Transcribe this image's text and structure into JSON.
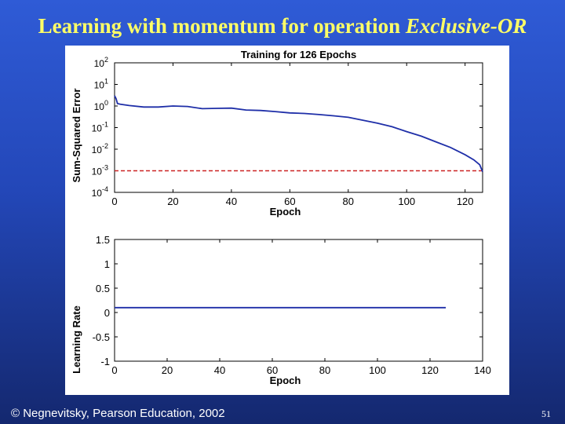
{
  "slide": {
    "title_main": "Learning with momentum for operation",
    "title_italic": "Exclusive-OR",
    "footer": "© Negnevitsky, Pearson Education, 2002",
    "page_number": "51"
  },
  "colors": {
    "series": "#1f2fa8",
    "goal": "#cc2222",
    "title": "#ffff66"
  },
  "chart_data": [
    {
      "type": "line",
      "title": "Training for 126 Epochs",
      "xlabel": "Epoch",
      "ylabel": "Sum-Squared Error",
      "yscale": "log",
      "xlim": [
        0,
        126
      ],
      "ylim": [
        0.0001,
        100
      ],
      "xticks": [
        0,
        20,
        40,
        60,
        80,
        100,
        120
      ],
      "yticks": [
        {
          "base": "10",
          "exp": "2"
        },
        {
          "base": "10",
          "exp": "1"
        },
        {
          "base": "10",
          "exp": "0"
        },
        {
          "base": "10",
          "exp": "-1"
        },
        {
          "base": "10",
          "exp": "-2"
        },
        {
          "base": "10",
          "exp": "-3"
        },
        {
          "base": "10",
          "exp": "-4"
        }
      ],
      "goal": 0.001,
      "series": [
        {
          "x": [
            0,
            0.5,
            1,
            2,
            5,
            10,
            15,
            20,
            25,
            30,
            35,
            40,
            45,
            50,
            55,
            60,
            65,
            70,
            75,
            80,
            85,
            90,
            95,
            100,
            105,
            110,
            115,
            120,
            123,
            125,
            126
          ],
          "y": [
            3.0,
            2.2,
            1.3,
            1.2,
            1.05,
            0.9,
            0.9,
            1.0,
            0.95,
            0.75,
            0.78,
            0.8,
            0.65,
            0.62,
            0.55,
            0.48,
            0.45,
            0.4,
            0.35,
            0.3,
            0.22,
            0.16,
            0.11,
            0.065,
            0.04,
            0.022,
            0.012,
            0.0055,
            0.0032,
            0.0019,
            0.0009
          ]
        }
      ]
    },
    {
      "type": "line",
      "title": "",
      "xlabel": "Epoch",
      "ylabel": "Learning Rate",
      "xlim": [
        0,
        140
      ],
      "ylim": [
        -1,
        1.5
      ],
      "xticks": [
        0,
        20,
        40,
        60,
        80,
        100,
        120,
        140
      ],
      "yticks": [
        1.5,
        1,
        0.5,
        0,
        -0.5,
        -1
      ],
      "series": [
        {
          "x": [
            0,
            126
          ],
          "y": [
            0.1,
            0.1
          ]
        }
      ]
    }
  ]
}
